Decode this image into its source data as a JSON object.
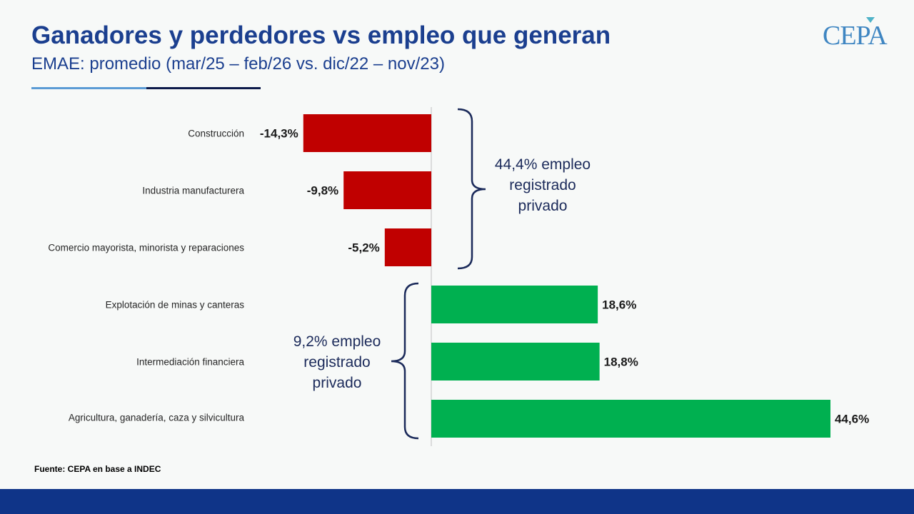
{
  "header": {
    "title": "Ganadores y perdedores vs empleo que generan",
    "subtitle": "EMAE: promedio (mar/25 – feb/26 vs. dic/22 – nov/23)",
    "logo": "CEPA"
  },
  "annotations": {
    "losers_note": [
      "44,4% empleo",
      "registrado",
      "privado"
    ],
    "winners_note": [
      "9,2% empleo",
      "registrado",
      "privado"
    ]
  },
  "source": "Fuente: CEPA en base a INDEC",
  "colors": {
    "negative": "#c00000",
    "positive": "#00b050",
    "title": "#1b3f8f",
    "footer": "#0f3488"
  },
  "chart_data": {
    "type": "bar",
    "orientation": "horizontal",
    "title": "Ganadores y perdedores vs empleo que generan",
    "categories": [
      "Construcción",
      "Industria manufacturera",
      "Comercio mayorista, minorista y reparaciones",
      "Explotación de minas y canteras",
      "Intermediación financiera",
      "Agricultura, ganadería, caza y silvicultura"
    ],
    "values": [
      -14.3,
      -9.8,
      -5.2,
      18.6,
      18.8,
      44.6
    ],
    "labels": [
      "-14,3%",
      "-9,8%",
      "-5,2%",
      "18,6%",
      "18,8%",
      "44,6%"
    ],
    "xlim": [
      -14.3,
      44.6
    ],
    "grid": false,
    "legend": "none"
  }
}
